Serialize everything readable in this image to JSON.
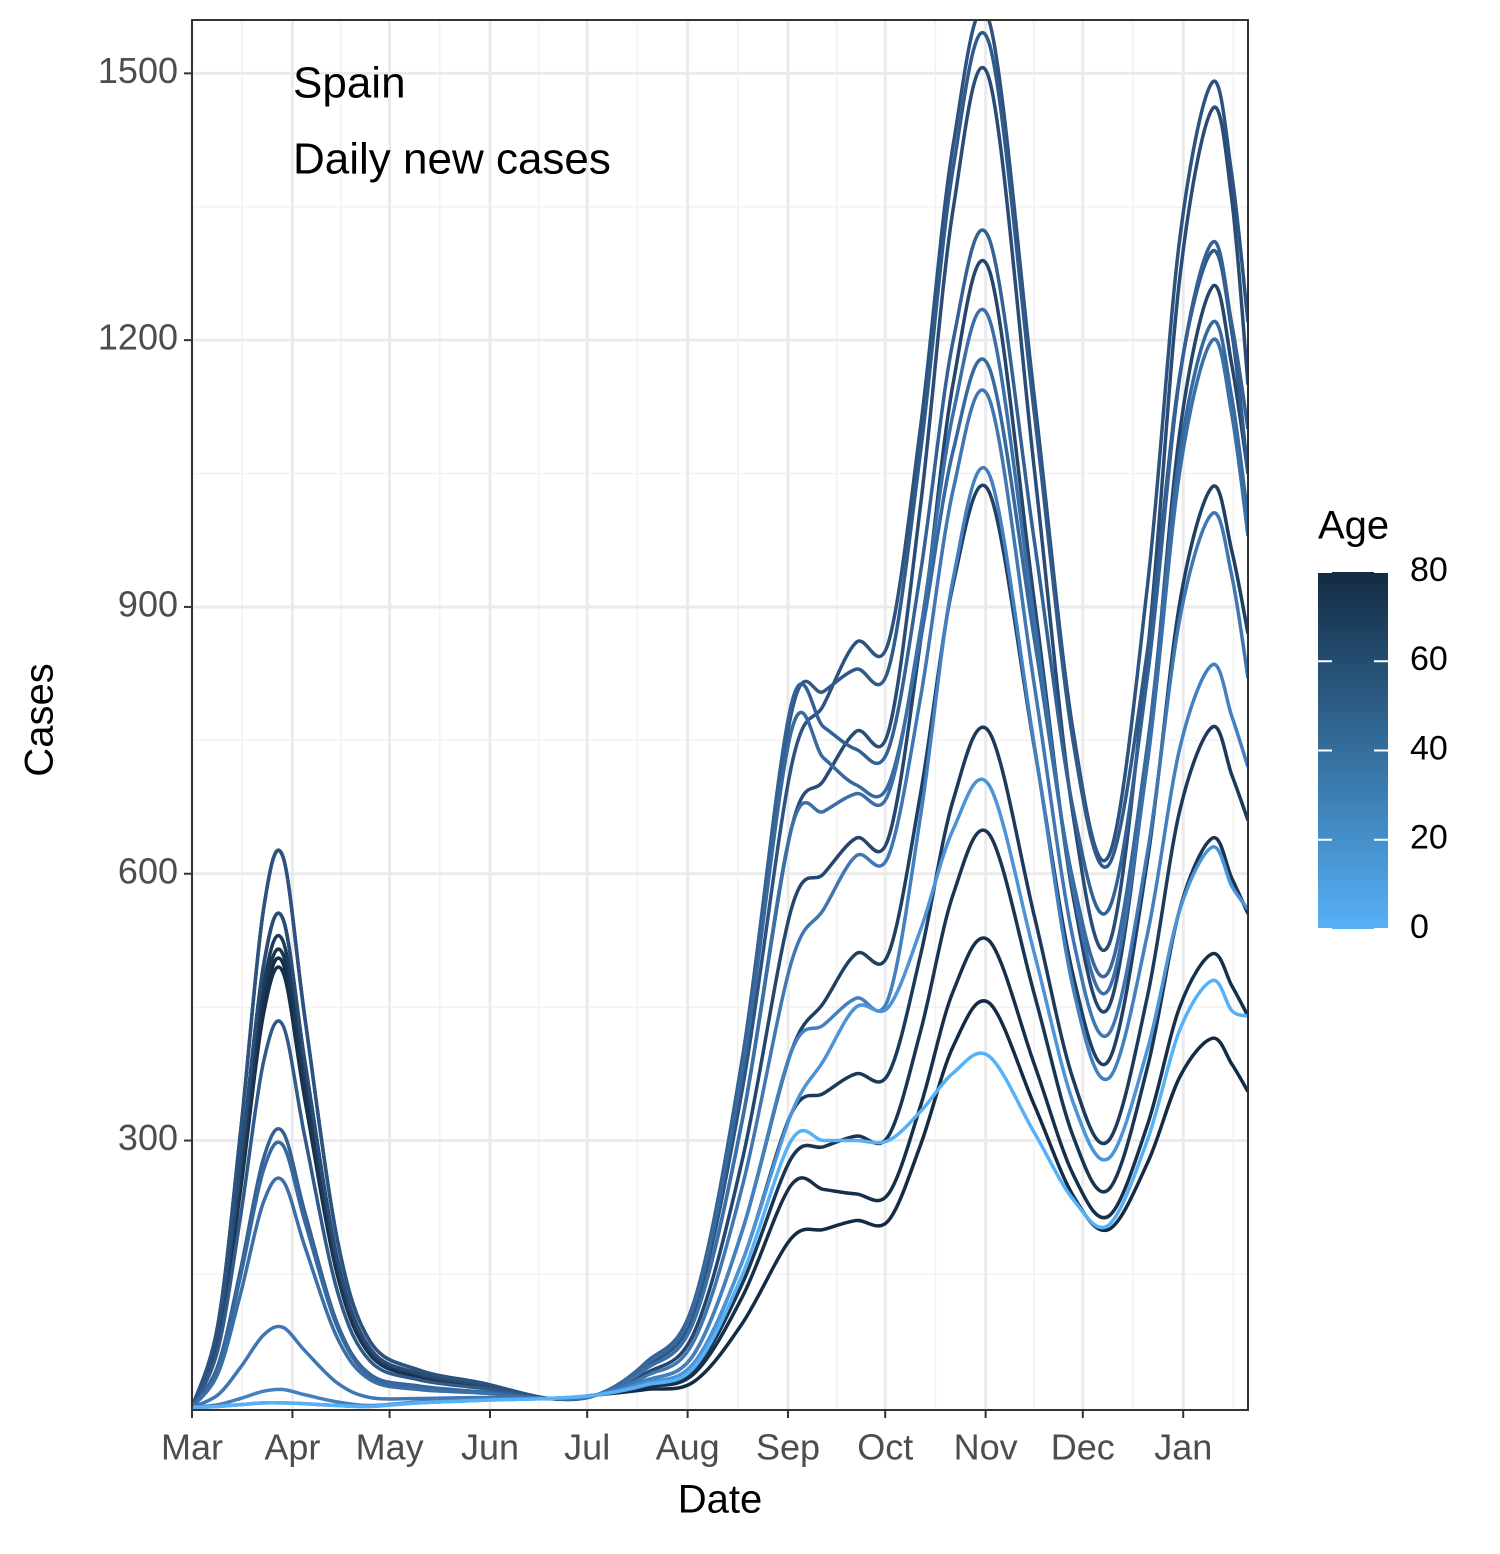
{
  "chart_data": {
    "type": "line",
    "annotations": [
      "Spain",
      "Daily new cases"
    ],
    "xlabel": "Date",
    "ylabel": "Cases",
    "xlim": [
      0,
      326
    ],
    "xticks": [
      {
        "value": 0,
        "label": "Mar"
      },
      {
        "value": 31,
        "label": "Apr"
      },
      {
        "value": 61,
        "label": "May"
      },
      {
        "value": 92,
        "label": "Jun"
      },
      {
        "value": 122,
        "label": "Jul"
      },
      {
        "value": 153,
        "label": "Aug"
      },
      {
        "value": 184,
        "label": "Sep"
      },
      {
        "value": 214,
        "label": "Oct"
      },
      {
        "value": 245,
        "label": "Nov"
      },
      {
        "value": 275,
        "label": "Dec"
      },
      {
        "value": 306,
        "label": "Jan"
      }
    ],
    "ylim": [
      -3,
      1560
    ],
    "yticks": [
      300,
      600,
      900,
      1200,
      1500
    ],
    "grid": true,
    "x": [
      0,
      8,
      15,
      22,
      28,
      35,
      45,
      55,
      70,
      90,
      110,
      125,
      140,
      155,
      170,
      185,
      195,
      205,
      215,
      225,
      235,
      246,
      260,
      272,
      283,
      295,
      305,
      315,
      321,
      326
    ],
    "series": [
      {
        "color": "#132B43",
        "values": [
          0,
          75,
          250,
          450,
          500,
          350,
          150,
          60,
          35,
          23,
          10,
          14,
          20,
          29,
          95,
          190,
          200,
          210,
          210,
          296,
          406,
          455,
          340,
          238,
          200,
          275,
          372,
          415,
          386,
          355
        ]
      },
      {
        "color": "#16304a",
        "values": [
          0,
          74,
          245,
          441,
          490,
          343,
          147,
          59,
          34,
          23,
          10,
          14,
          23,
          38,
          125,
          250,
          245,
          240,
          240,
          340,
          468,
          525,
          386,
          262,
          215,
          318,
          451,
          510,
          474,
          440
        ]
      },
      {
        "color": "#1a3552",
        "values": [
          0,
          77,
          255,
          459,
          510,
          357,
          153,
          61,
          36,
          23,
          10,
          14,
          24,
          42,
          140,
          280,
          293,
          305,
          305,
          424,
          577,
          645,
          465,
          305,
          245,
          383,
          561,
          640,
          595,
          555
        ]
      },
      {
        "color": "#1d3a5a",
        "values": [
          0,
          79,
          263,
          473,
          525,
          368,
          158,
          63,
          37,
          24,
          10,
          14,
          27,
          50,
          165,
          330,
          353,
          375,
          375,
          510,
          683,
          760,
          553,
          369,
          300,
          463,
          672,
          765,
          711,
          660
        ]
      },
      {
        "color": "#204063",
        "values": [
          0,
          83,
          275,
          495,
          550,
          385,
          165,
          66,
          38,
          25,
          10,
          14,
          30,
          60,
          200,
          400,
          455,
          510,
          510,
          692,
          926,
          1030,
          743,
          486,
          390,
          616,
          906,
          1035,
          963,
          870
        ]
      },
      {
        "color": "#24466c",
        "values": [
          0,
          93,
          310,
          558,
          620,
          434,
          186,
          74,
          42,
          27,
          10,
          14,
          38,
          84,
          280,
          560,
          600,
          640,
          640,
          864,
          1152,
          1280,
          907,
          575,
          450,
          734,
          1098,
          1260,
          1172,
          1050
        ]
      },
      {
        "color": "#284c76",
        "values": [
          0,
          83,
          275,
          495,
          550,
          385,
          165,
          66,
          38,
          25,
          10,
          14,
          43,
          98,
          325,
          650,
          705,
          760,
          760,
          1017,
          1348,
          1495,
          1056,
          666,
          520,
          849,
          1272,
          1460,
          1358,
          1150
        ]
      },
      {
        "color": "#2c5380",
        "values": [
          0,
          93,
          310,
          558,
          620,
          434,
          186,
          74,
          42,
          27,
          10,
          14,
          46,
          108,
          360,
          720,
          790,
          860,
          860,
          1105,
          1420,
          1560,
          1137,
          761,
          620,
          925,
          1316,
          1490,
          1386,
          1220
        ]
      },
      {
        "color": "#305a8a",
        "values": [
          0,
          65,
          215,
          387,
          430,
          301,
          129,
          52,
          31,
          21,
          10,
          14,
          49,
          117,
          390,
          780,
          805,
          830,
          830,
          1077,
          1394,
          1535,
          1119,
          749,
          610,
          852,
          1162,
          1300,
          1209,
          1050
        ]
      },
      {
        "color": "#336194",
        "values": [
          0,
          47,
          155,
          279,
          310,
          217,
          93,
          37,
          24,
          17,
          10,
          14,
          50,
          119,
          395,
          790,
          765,
          740,
          740,
          941,
          1200,
          1315,
          975,
          673,
          560,
          823,
          1160,
          1310,
          1218,
          1100
        ]
      },
      {
        "color": "#37689e",
        "values": [
          0,
          44,
          148,
          266,
          295,
          207,
          89,
          35,
          23,
          17,
          10,
          14,
          48,
          114,
          380,
          760,
          730,
          700,
          700,
          865,
          1076,
          1170,
          865,
          592,
          490,
          746,
          1074,
          1220,
          1135,
          1000
        ]
      },
      {
        "color": "#3b6fa8",
        "values": [
          0,
          38,
          128,
          230,
          255,
          179,
          77,
          31,
          20,
          16,
          10,
          14,
          43,
          98,
          325,
          650,
          670,
          690,
          690,
          877,
          1118,
          1225,
          886,
          583,
          470,
          726,
          1054,
          1200,
          1116,
          980
        ]
      },
      {
        "color": "#4077b3",
        "values": [
          0,
          14,
          45,
          81,
          90,
          63,
          27,
          11,
          10,
          11,
          10,
          14,
          35,
          75,
          250,
          500,
          560,
          620,
          620,
          800,
          1032,
          1135,
          813,
          527,
          420,
          625,
          888,
          1005,
          935,
          820
        ]
      },
      {
        "color": "#4480bf",
        "values": [
          0,
          3,
          10,
          18,
          20,
          14,
          6,
          2,
          6,
          9,
          10,
          14,
          30,
          60,
          200,
          400,
          430,
          460,
          460,
          667,
          932,
          1050,
          745,
          472,
          370,
          533,
          742,
          835,
          777,
          720
        ]
      },
      {
        "color": "#4c94d6",
        "values": [
          0,
          1,
          3,
          5,
          5,
          4,
          2,
          1,
          5,
          8,
          10,
          14,
          27,
          50,
          165,
          330,
          390,
          450,
          450,
          538,
          650,
          700,
          511,
          343,
          280,
          403,
          560,
          630,
          586,
          560
        ]
      },
      {
        "color": "#56B1F7",
        "values": [
          0,
          1,
          3,
          5,
          5,
          4,
          2,
          1,
          5,
          8,
          10,
          14,
          25,
          45,
          150,
          300,
          300,
          300,
          300,
          333,
          376,
          395,
          309,
          234,
          205,
          301,
          425,
          480,
          446,
          440
        ]
      }
    ],
    "colorbar": {
      "title": "Age",
      "limits": [
        0,
        80
      ],
      "ticks": [
        0,
        20,
        40,
        60,
        80
      ],
      "low": "#56B1F7",
      "high": "#132B43"
    }
  }
}
